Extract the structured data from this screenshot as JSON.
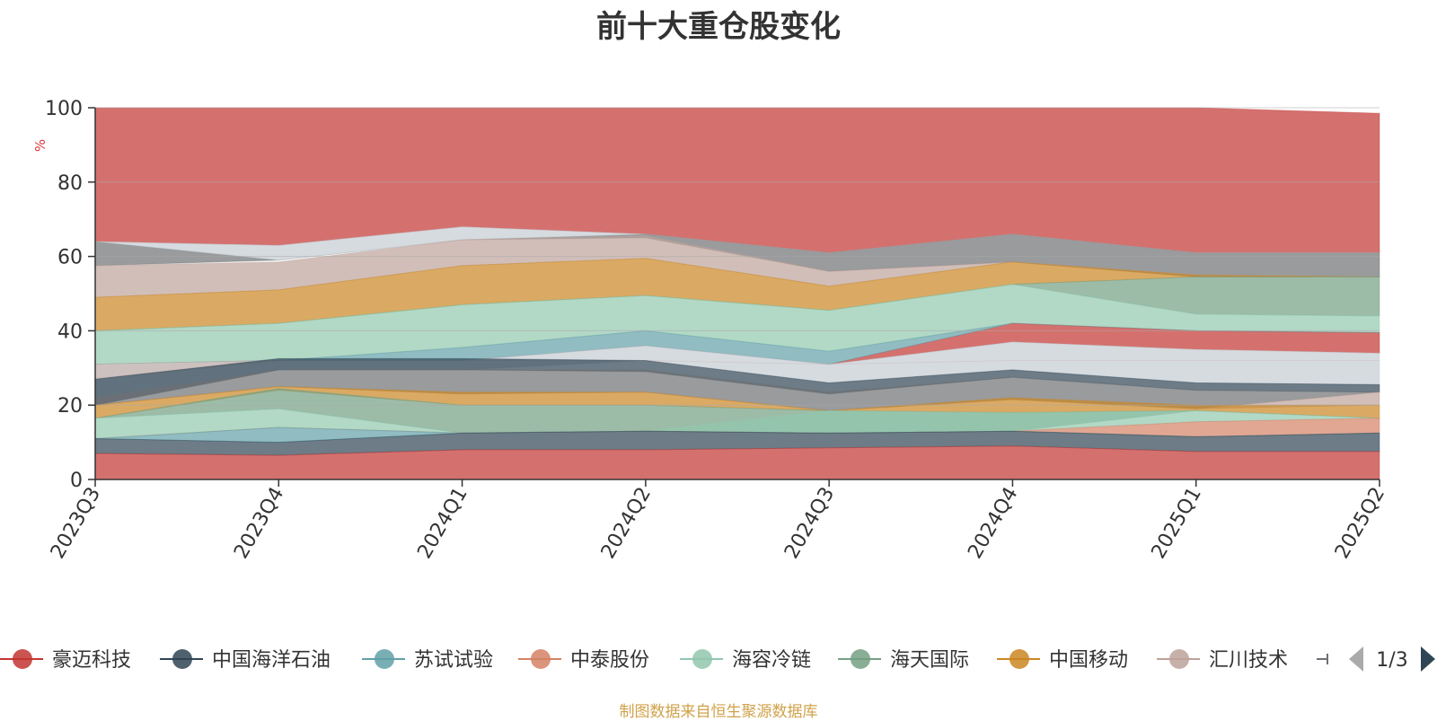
{
  "title": "前十大重仓股变化",
  "source_note": "制图数据来自恒生聚源数据库",
  "legend_page": "1/3",
  "chart_data": {
    "type": "area",
    "stacked": true,
    "title": "前十大重仓股变化",
    "ylabel": "%",
    "ylim": [
      0,
      100
    ],
    "yticks": [
      0,
      20,
      40,
      60,
      80,
      100
    ],
    "grid": true,
    "legend_position": "bottom",
    "categories": [
      "2023Q3",
      "2023Q4",
      "2024Q1",
      "2024Q2",
      "2024Q3",
      "2024Q4",
      "2025Q1",
      "2025Q2"
    ],
    "series": [
      {
        "name": "豪迈科技",
        "color": "#c23531",
        "values": [
          7,
          6.5,
          8,
          8,
          8.5,
          9,
          7.5,
          7.5
        ]
      },
      {
        "name": "中国海洋石油",
        "color": "#2f4554",
        "values": [
          4,
          4,
          4.5,
          5,
          4,
          4,
          4,
          5
        ]
      },
      {
        "name": "苏试试验",
        "color": "#61a0a8",
        "values": [
          0,
          3.5,
          0,
          0,
          0,
          0,
          0,
          0
        ]
      },
      {
        "name": "中泰股份",
        "color": "#d48265",
        "values": [
          0,
          0,
          0,
          0,
          0,
          0,
          4,
          4
        ]
      },
      {
        "name": "海容冷链",
        "color": "#91c7ae",
        "values": [
          5.5,
          5,
          0,
          0,
          6,
          5,
          3,
          3
        ]
      },
      {
        "name": "海天国际",
        "color": "#749f83",
        "values": [
          0,
          5.5,
          7,
          7,
          0,
          0,
          0,
          0
        ]
      },
      {
        "name": "中国移动",
        "color": "#ca8622",
        "values": [
          4,
          0,
          4,
          3.5,
          0,
          3.5,
          0,
          4
        ]
      },
      {
        "name": "汇川技术",
        "color": "#bda29a",
        "values": [
          0,
          0,
          0,
          0,
          0,
          0,
          0,
          3
        ]
      }
    ],
    "overlay_areas_top_to_bottom": [
      {
        "color": "#c23531",
        "top": [
          100,
          100,
          100,
          100,
          100,
          100,
          100,
          98.5
        ],
        "bottom": [
          64,
          63,
          68,
          66,
          61,
          66,
          61,
          61
        ]
      },
      {
        "color": "#6e7074",
        "top": [
          64,
          59,
          64.5,
          66,
          61,
          66,
          61,
          61
        ],
        "bottom": [
          57.5,
          59,
          64.5,
          65,
          56,
          58.5,
          54.5,
          54.5
        ]
      },
      {
        "color": "#c4ccd3",
        "top": [
          64,
          63,
          68,
          66,
          61,
          66,
          61,
          61
        ],
        "bottom": [
          64,
          59,
          64.5,
          66,
          61,
          66,
          61,
          61
        ]
      },
      {
        "color": "#bda29a",
        "top": [
          57.5,
          58.5,
          64.5,
          65.5,
          56,
          58.5,
          55,
          54.5
        ],
        "bottom": [
          49,
          51,
          57.5,
          59.5,
          52,
          58.5,
          55,
          54.5
        ]
      },
      {
        "color": "#ca8622",
        "top": [
          49,
          51,
          57.5,
          59.5,
          52,
          58.5,
          55,
          54.5
        ],
        "bottom": [
          40,
          42,
          47,
          49.5,
          45.5,
          52.5,
          54.5,
          54.5
        ]
      },
      {
        "color": "#749f83",
        "top": [
          40,
          42,
          47,
          49.5,
          45.5,
          52.5,
          54.5,
          54.5
        ],
        "bottom": [
          40,
          42,
          47,
          49.5,
          45.5,
          52.5,
          44.5,
          44
        ]
      },
      {
        "color": "#91c7ae",
        "top": [
          40,
          42,
          47,
          49.5,
          45.5,
          52.5,
          44.5,
          44
        ],
        "bottom": [
          31,
          32,
          35.5,
          40,
          34.5,
          42,
          40,
          39.5
        ]
      },
      {
        "color": "#c23531",
        "top": [
          31,
          32,
          32,
          36,
          31,
          42,
          40,
          39.5
        ],
        "bottom": [
          31,
          32,
          32,
          36,
          31,
          37,
          35,
          34
        ]
      },
      {
        "color": "#d48265",
        "top": [
          31,
          32,
          32,
          32,
          31,
          32,
          32,
          32
        ],
        "bottom": [
          27,
          32,
          32,
          32,
          31,
          32,
          32,
          32
        ]
      },
      {
        "color": "#61a0a8",
        "top": [
          31,
          32,
          35.5,
          40,
          34.5,
          42,
          40,
          39.5
        ],
        "bottom": [
          31,
          32,
          32,
          36,
          31,
          42,
          40,
          39.5
        ]
      },
      {
        "color": "#c4ccd3",
        "top": [
          31,
          32,
          32,
          36,
          31,
          37,
          35,
          34
        ],
        "bottom": [
          20,
          29.5,
          29.5,
          32,
          26,
          29.5,
          26,
          25.5
        ]
      },
      {
        "color": "#2f4554",
        "top": [
          27,
          32.5,
          32.5,
          32,
          26,
          29.5,
          26,
          25.5
        ],
        "bottom": [
          20,
          29.5,
          29.5,
          29,
          23,
          27.5,
          24,
          23.5
        ]
      },
      {
        "color": "#6e7074",
        "top": [
          22,
          29.5,
          29.5,
          29.5,
          23.5,
          27.5,
          24,
          23.5
        ],
        "bottom": [
          20,
          25,
          23,
          23.5,
          18.5,
          21.5,
          19,
          23.5
        ]
      },
      {
        "color": "#bda29a",
        "top": [
          20,
          25,
          23,
          23.5,
          18.5,
          21.5,
          19,
          23.5
        ],
        "bottom": [
          20,
          25,
          23,
          23.5,
          18.5,
          21.5,
          19,
          20
        ]
      },
      {
        "color": "#ca8622",
        "top": [
          20,
          25,
          23.5,
          23.5,
          18.5,
          22,
          20,
          20
        ],
        "bottom": [
          16.5,
          24,
          20,
          20,
          18.5,
          18,
          18.5,
          16.5
        ]
      },
      {
        "color": "#749f83",
        "top": [
          16.5,
          24.5,
          20,
          20,
          18.5,
          18,
          18.5,
          16.5
        ],
        "bottom": [
          16.5,
          19,
          12.5,
          13,
          12.5,
          13,
          18.5,
          16.5
        ]
      },
      {
        "color": "#91c7ae",
        "top": [
          16.5,
          19,
          12.5,
          13,
          18.5,
          18,
          18.5,
          16.5
        ],
        "bottom": [
          11,
          14,
          12.5,
          13,
          12.5,
          13,
          15.5,
          16.5
        ]
      },
      {
        "color": "#d48265",
        "top": [
          11,
          14,
          12.5,
          13,
          12.5,
          13,
          15.5,
          16.5
        ],
        "bottom": [
          11,
          14,
          12.5,
          13,
          12.5,
          13,
          11.5,
          12.5
        ]
      },
      {
        "color": "#61a0a8",
        "top": [
          11,
          14,
          12.5,
          13,
          12.5,
          13,
          11.5,
          12.5
        ],
        "bottom": [
          11,
          10,
          12.5,
          13,
          12.5,
          13,
          11.5,
          12.5
        ]
      },
      {
        "color": "#2f4554",
        "top": [
          11,
          10,
          12.5,
          13,
          12.5,
          13,
          11.5,
          12.5
        ],
        "bottom": [
          7,
          6.5,
          8,
          8,
          8.5,
          9,
          7.5,
          7.5
        ]
      },
      {
        "color": "#c23531",
        "top": [
          7,
          6.5,
          8,
          8,
          8.5,
          9,
          7.5,
          7.5
        ],
        "bottom": [
          0,
          0,
          0,
          0,
          0,
          0,
          0,
          0
        ]
      }
    ]
  }
}
